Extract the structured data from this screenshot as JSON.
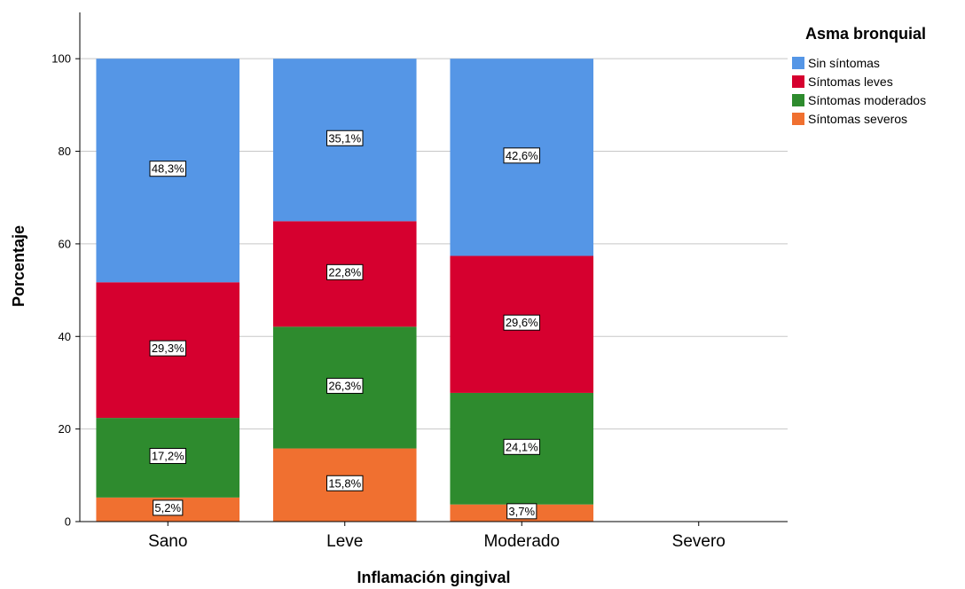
{
  "chart_data": {
    "type": "bar",
    "stacked": true,
    "percent_stacked": true,
    "categories": [
      "Sano",
      "Leve",
      "Moderado",
      "Severo"
    ],
    "xlabel": "Inflamación gingival",
    "ylabel": "Porcentaje",
    "ylim": [
      0,
      110
    ],
    "yticks": [
      0,
      20,
      40,
      60,
      80,
      100
    ],
    "grid": true,
    "legend": {
      "title": "Asma bronquial",
      "position": "right"
    },
    "series": [
      {
        "name": "Síntomas severos",
        "color": "#f07030",
        "values": [
          5.2,
          15.8,
          3.7,
          null
        ],
        "labels": [
          "5,2%",
          "15,8%",
          "3,7%",
          ""
        ]
      },
      {
        "name": "Síntomas moderados",
        "color": "#2e8b2e",
        "values": [
          17.2,
          26.3,
          24.1,
          null
        ],
        "labels": [
          "17,2%",
          "26,3%",
          "24,1%",
          ""
        ]
      },
      {
        "name": "Síntomas leves",
        "color": "#d6002f",
        "values": [
          29.3,
          22.8,
          29.6,
          null
        ],
        "labels": [
          "29,3%",
          "22,8%",
          "29,6%",
          ""
        ]
      },
      {
        "name": "Sin síntomas",
        "color": "#5596e6",
        "values": [
          48.3,
          35.1,
          42.6,
          null
        ],
        "labels": [
          "48,3%",
          "35,1%",
          "42,6%",
          ""
        ]
      }
    ],
    "legend_order": [
      "Sin síntomas",
      "Síntomas leves",
      "Síntomas moderados",
      "Síntomas severos"
    ]
  }
}
